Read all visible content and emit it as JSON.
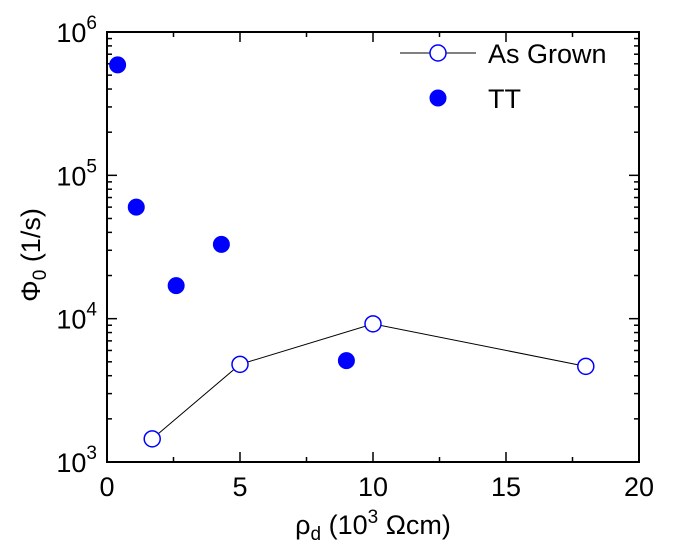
{
  "chart_data": {
    "type": "scatter",
    "xlabel": {
      "prefix": "ρ",
      "sub": "d",
      "mid": " (10",
      "sup": "3",
      "suffix": " Ωcm)"
    },
    "ylabel": {
      "prefix": "Φ",
      "sub": "0",
      "suffix": " (1/s)"
    },
    "xlim": [
      0,
      20
    ],
    "ylim": [
      1000,
      1000000
    ],
    "y_scale": "log",
    "x_ticks": [
      "0",
      "5",
      "10",
      "15",
      "20"
    ],
    "y_ticks": [
      {
        "base": "10",
        "exp": "3"
      },
      {
        "base": "10",
        "exp": "4"
      },
      {
        "base": "10",
        "exp": "5"
      },
      {
        "base": "10",
        "exp": "6"
      }
    ],
    "legend_position": "top-right",
    "series": [
      {
        "name": "As Grown",
        "style": "open-circle-line",
        "color": "#0000ff",
        "line_color": "#000000",
        "x": [
          1.7,
          5.0,
          10.0,
          18.0
        ],
        "y": [
          1450,
          4800,
          9200,
          4650
        ]
      },
      {
        "name": "TT",
        "style": "filled-circle",
        "color": "#0000ff",
        "x": [
          0.4,
          1.1,
          2.6,
          4.3,
          9.0
        ],
        "y": [
          590000,
          60000,
          17000,
          33000,
          5100
        ]
      }
    ]
  }
}
